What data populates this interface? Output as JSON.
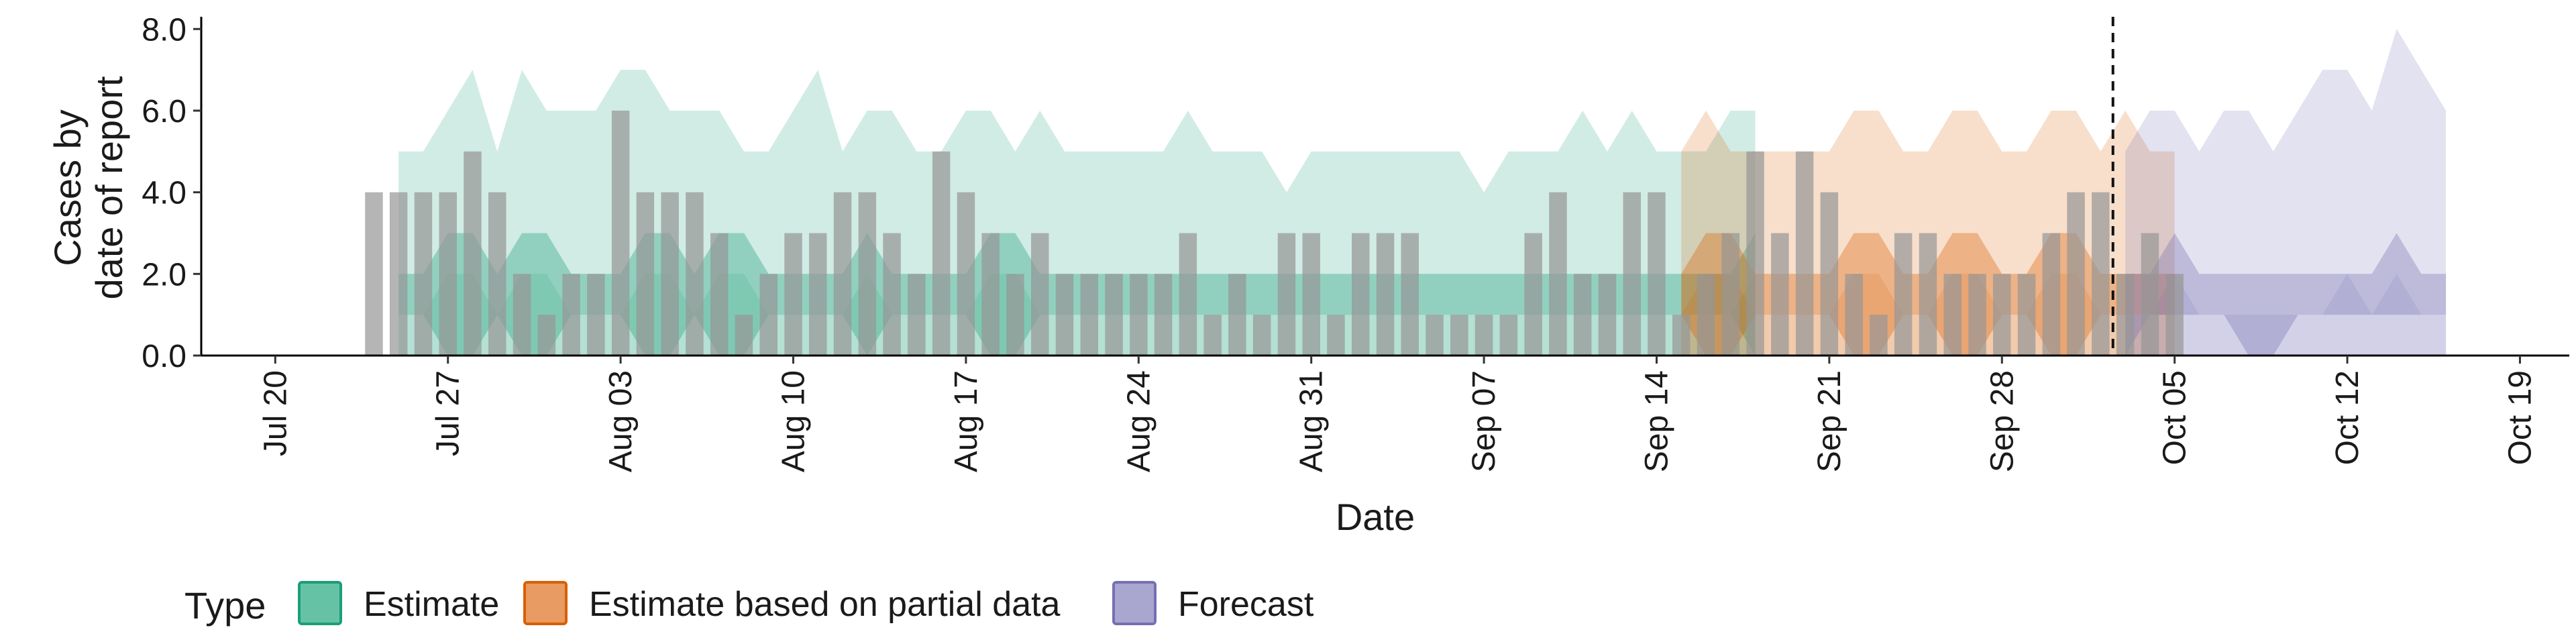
{
  "chart_data": {
    "type": "bar",
    "title": "",
    "xlabel": "Date",
    "ylabel": [
      "Cases by",
      "date of report"
    ],
    "ylim": [
      0,
      8.3
    ],
    "xlim": [
      "2020-07-17",
      "2020-10-21"
    ],
    "y_ticks": [
      0,
      2,
      4,
      6,
      8
    ],
    "y_tick_labels": [
      "0.0",
      "2.0",
      "4.0",
      "6.0",
      "8.0"
    ],
    "x_ticks": [
      "2020-07-20",
      "2020-07-27",
      "2020-08-03",
      "2020-08-10",
      "2020-08-17",
      "2020-08-24",
      "2020-08-31",
      "2020-09-07",
      "2020-09-14",
      "2020-09-21",
      "2020-09-28",
      "2020-10-05",
      "2020-10-12",
      "2020-10-19"
    ],
    "x_tick_labels": [
      "Jul 20",
      "Jul 27",
      "Aug 03",
      "Aug 10",
      "Aug 17",
      "Aug 24",
      "Aug 31",
      "Sep 07",
      "Sep 14",
      "Sep 21",
      "Sep 28",
      "Oct 05",
      "Oct 12",
      "Oct 19"
    ],
    "forecast_date": "2020-10-02",
    "grid": false,
    "legend": {
      "title": "Type",
      "position": "bottom-left",
      "entries": [
        {
          "label": "Estimate",
          "fill": "#66c2a5",
          "stroke": "#1b9e77"
        },
        {
          "label": "Estimate based on partial data",
          "fill": "#e89b62",
          "stroke": "#d95f02"
        },
        {
          "label": "Forecast",
          "fill": "#a9a6cf",
          "stroke": "#7570b3"
        }
      ]
    },
    "colors": {
      "bars": "#969696",
      "estimate": "#1b9e77",
      "partial": "#d95f02",
      "forecast": "#7570b3"
    },
    "bars": {
      "start_date": "2020-07-24",
      "values": [
        4,
        4,
        4,
        4,
        5,
        4,
        2,
        1,
        2,
        2,
        6,
        4,
        4,
        4,
        3,
        1,
        2,
        3,
        3,
        4,
        4,
        3,
        2,
        5,
        4,
        3,
        2,
        3,
        2,
        2,
        2,
        2,
        2,
        3,
        1,
        2,
        1,
        3,
        3,
        1,
        3,
        3,
        3,
        1,
        1,
        1,
        1,
        3,
        4,
        2,
        2,
        4,
        4,
        1,
        2,
        3,
        5,
        3,
        5,
        4,
        2,
        1,
        3,
        3,
        2,
        2,
        2,
        2,
        3,
        4,
        4,
        2,
        3,
        2
      ]
    },
    "series": [
      {
        "name": "Estimate",
        "start_date": "2020-07-25",
        "outer_upper": [
          5,
          5,
          6,
          7,
          5,
          7,
          6,
          6,
          6,
          7,
          7,
          6,
          6,
          6,
          5,
          5,
          6,
          7,
          5,
          6,
          6,
          5,
          5,
          6,
          6,
          5,
          6,
          5,
          5,
          5,
          5,
          5,
          6,
          5,
          5,
          5,
          4,
          5,
          5,
          5,
          5,
          5,
          5,
          5,
          4,
          5,
          5,
          5,
          6,
          5,
          6,
          5,
          5,
          5,
          6,
          6
        ],
        "outer_lower": [
          0,
          0,
          0,
          0,
          0,
          0,
          0,
          0,
          0,
          0,
          0,
          0,
          0,
          0,
          0,
          0,
          0,
          0,
          0,
          0,
          0,
          0,
          0,
          0,
          0,
          0,
          0,
          0,
          0,
          0,
          0,
          0,
          0,
          0,
          0,
          0,
          0,
          0,
          0,
          0,
          0,
          0,
          0,
          0,
          0,
          0,
          0,
          0,
          0,
          0,
          0,
          0,
          0,
          0,
          0,
          0
        ],
        "inner_upper": [
          2,
          2,
          3,
          3,
          2,
          3,
          3,
          2,
          2,
          2,
          3,
          3,
          2,
          3,
          3,
          2,
          2,
          2,
          2,
          3,
          2,
          2,
          2,
          2,
          3,
          3,
          2,
          2,
          2,
          2,
          2,
          2,
          2,
          2,
          2,
          2,
          2,
          2,
          2,
          2,
          2,
          2,
          2,
          2,
          2,
          2,
          2,
          2,
          2,
          2,
          2,
          2,
          2,
          2,
          2,
          3
        ],
        "inner_lower": [
          1,
          1,
          0,
          0,
          1,
          0,
          0,
          1,
          1,
          1,
          0,
          0,
          1,
          0,
          0,
          1,
          1,
          1,
          1,
          0,
          1,
          1,
          1,
          1,
          0,
          0,
          1,
          1,
          1,
          1,
          1,
          1,
          1,
          1,
          1,
          1,
          1,
          1,
          1,
          1,
          1,
          1,
          1,
          1,
          1,
          1,
          1,
          1,
          1,
          1,
          1,
          1,
          1,
          1,
          1,
          0
        ],
        "median": [
          1,
          1,
          2,
          2,
          1,
          2,
          2,
          1,
          1,
          1,
          2,
          2,
          1,
          2,
          2,
          1,
          1,
          1,
          1,
          2,
          1,
          1,
          1,
          1,
          2,
          2,
          1,
          1,
          1,
          1,
          1,
          1,
          1,
          1,
          1,
          1,
          1,
          1,
          1,
          1,
          1,
          1,
          1,
          1,
          1,
          1,
          1,
          1,
          1,
          1,
          1,
          1,
          1,
          1,
          1,
          2
        ]
      },
      {
        "name": "Estimate based on partial data",
        "start_date": "2020-09-15",
        "outer_upper": [
          5,
          6,
          5,
          5,
          5,
          5,
          5,
          6,
          6,
          5,
          5,
          6,
          6,
          5,
          5,
          6,
          6,
          5,
          6,
          5,
          5
        ],
        "outer_lower": [
          0,
          0,
          0,
          0,
          0,
          0,
          0,
          0,
          0,
          0,
          0,
          0,
          0,
          0,
          0,
          0,
          0,
          0,
          0,
          0,
          0
        ],
        "inner_upper": [
          2,
          3,
          3,
          2,
          2,
          2,
          2,
          3,
          3,
          2,
          2,
          3,
          3,
          2,
          2,
          3,
          3,
          2,
          2,
          2,
          2
        ],
        "inner_lower": [
          1,
          0,
          0,
          1,
          1,
          1,
          1,
          0,
          0,
          1,
          1,
          0,
          0,
          1,
          1,
          0,
          0,
          1,
          1,
          1,
          1
        ],
        "median": [
          1,
          2,
          2,
          1,
          1,
          1,
          1,
          2,
          2,
          1,
          1,
          2,
          2,
          1,
          1,
          2,
          2,
          1,
          1,
          1,
          1
        ]
      },
      {
        "name": "Forecast",
        "start_date": "2020-10-03",
        "outer_upper": [
          5,
          6,
          6,
          5,
          6,
          6,
          5,
          6,
          7,
          7,
          6,
          8,
          7,
          6
        ],
        "outer_lower": [
          0,
          0,
          0,
          0,
          0,
          0,
          0,
          0,
          0,
          0,
          0,
          0,
          0,
          0
        ],
        "inner_upper": [
          2,
          2,
          3,
          2,
          2,
          2,
          2,
          2,
          2,
          2,
          2,
          3,
          2,
          2
        ],
        "inner_lower": [
          0,
          1,
          1,
          1,
          1,
          0,
          0,
          1,
          1,
          1,
          1,
          1,
          1,
          1
        ],
        "median": [
          1,
          1,
          2,
          1,
          1,
          1,
          1,
          1,
          1,
          2,
          1,
          2,
          1,
          1
        ]
      }
    ]
  }
}
